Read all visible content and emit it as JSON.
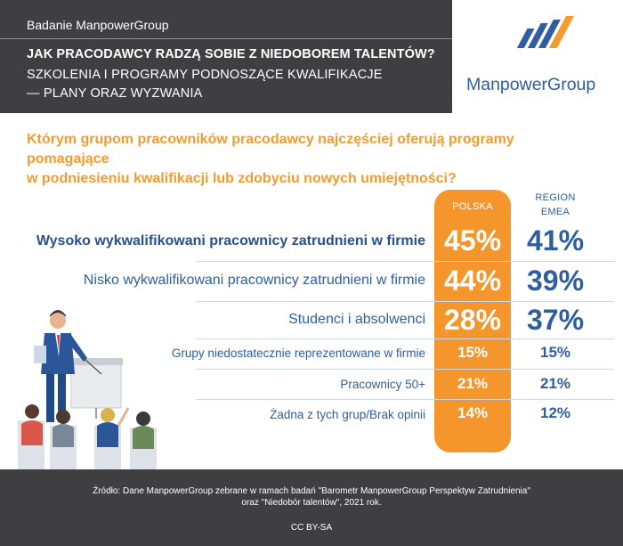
{
  "header": {
    "tag": "Badanie ManpowerGroup",
    "title": "JAK PRACODAWCY RADZĄ SOBIE Z NIEDOBOREM TALENTÓW?",
    "subtitle_line1": "SZKOLENIA I PROGRAMY PODNOSZĄCE KWALIFIKACJE",
    "subtitle_line2": "— PLANY ORAZ WYZWANIA"
  },
  "logo": {
    "name": "ManpowerGroup",
    "icon": "manpowergroup-logo-icon",
    "colors": [
      "#2f5d9e",
      "#f39b2e"
    ]
  },
  "question": {
    "line1": "Którym grupom pracowników pracodawcy najczęściej oferują programy pomagające",
    "line2": "w podniesieniu kwalifikacji lub zdobyciu nowych umiejętności?"
  },
  "columns": {
    "polska": "POLSKA",
    "emea_line1": "REGION",
    "emea_line2": "EMEA"
  },
  "rows": [
    {
      "label": "Wysoko wykwalifikowani pracownicy zatrudnieni w firmie",
      "polska": "45%",
      "emea": "41%"
    },
    {
      "label": "Nisko wykwalifikowani pracownicy zatrudnieni w firmie",
      "polska": "44%",
      "emea": "39%"
    },
    {
      "label": "Studenci i absolwenci",
      "polska": "28%",
      "emea": "37%"
    },
    {
      "label": "Grupy niedostatecznie reprezentowane w firmie",
      "polska": "15%",
      "emea": "15%"
    },
    {
      "label": "Pracownicy 50+",
      "polska": "21%",
      "emea": "21%"
    },
    {
      "label": "Żadna z tych grup/Brak opinii",
      "polska": "14%",
      "emea": "12%"
    }
  ],
  "illustration": {
    "icon": "presenter-audience-icon"
  },
  "footer": {
    "source_line1": "Źródło: Dane ManpowerGroup zebrane w ramach badań \"Barometr ManpowerGroup Perspektyw Zatrudnienia\"",
    "source_line2": "oraz \"Niedobór talentów\", 2021 rok.",
    "license": "CC BY-SA"
  },
  "colors": {
    "accent_orange": "#f5962d",
    "brand_blue": "#2f5d9e",
    "dark_header": "#3f3f41"
  }
}
